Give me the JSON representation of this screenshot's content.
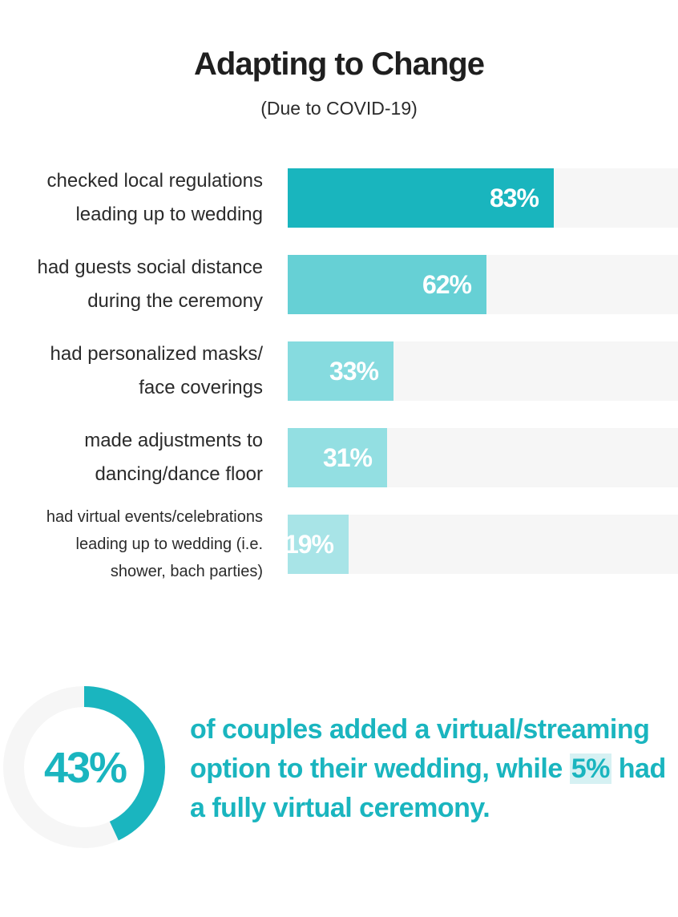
{
  "header": {
    "title": "Adapting to Change",
    "subtitle": "(Due to COVID-19)"
  },
  "chart_data": {
    "type": "bar",
    "orientation": "horizontal",
    "title": "Adapting to Change",
    "subtitle": "(Due to COVID-19)",
    "xlim": [
      0,
      100
    ],
    "categories": [
      [
        "checked local regulations",
        "leading up to wedding"
      ],
      [
        "had guests social distance",
        "during the ceremony"
      ],
      [
        "had personalized masks/",
        "face coverings"
      ],
      [
        "made adjustments to",
        "dancing/dance floor"
      ],
      [
        "had virtual events/celebrations",
        "leading up to wedding (i.e.",
        "shower, bach parties)"
      ]
    ],
    "values": [
      83,
      62,
      33,
      31,
      19
    ],
    "value_labels": [
      "83%",
      "62%",
      "33%",
      "31%",
      "19%"
    ],
    "colors": [
      "#19b5be",
      "#66d0d5",
      "#86dbdf",
      "#93dfe2",
      "#a8e4e7"
    ],
    "track_color": "#f6f6f6",
    "grid": false
  },
  "stat": {
    "percent": 43,
    "label": "43%",
    "ring_color": "#1ab5bf",
    "ring_track_color": "#f6f6f6",
    "text_before": "of couples added a virtual/streaming option to their wedding, while ",
    "highlight": "5%",
    "text_after": " had a fully virtual ceremony."
  }
}
